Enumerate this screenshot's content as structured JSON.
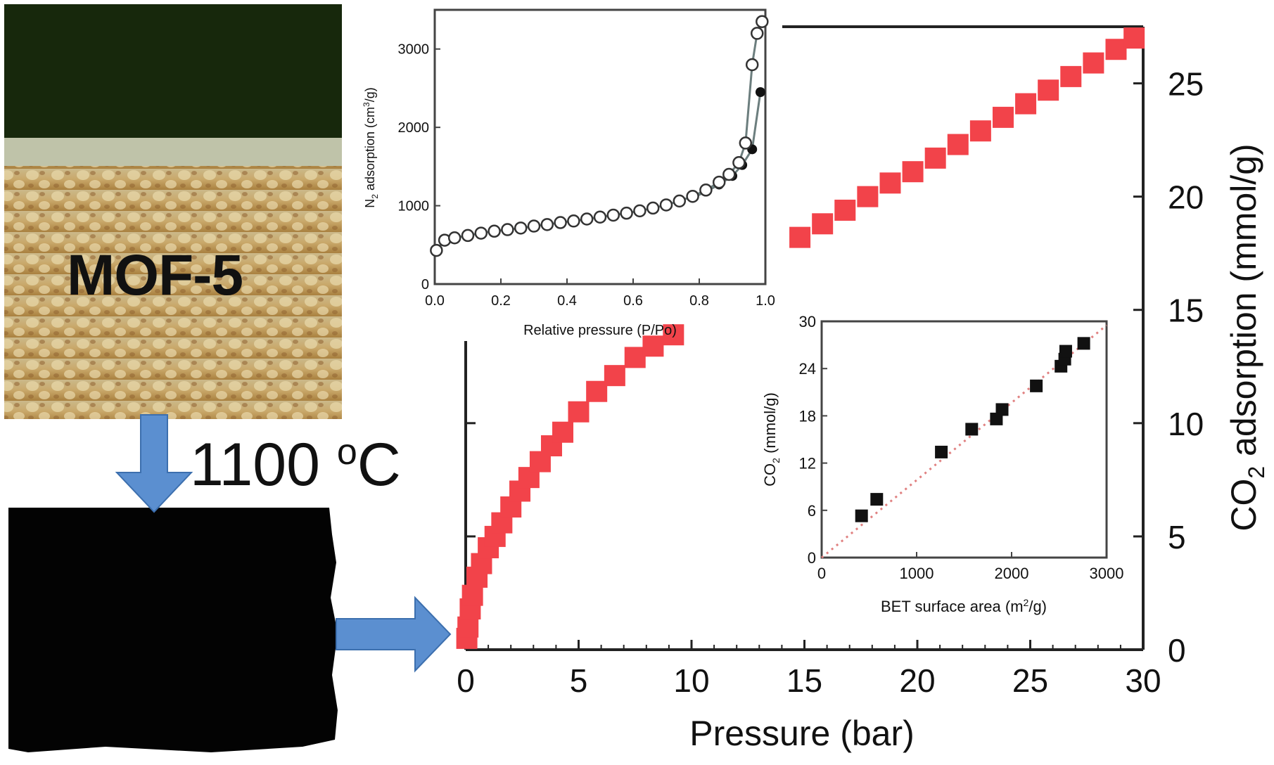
{
  "figure": {
    "photo_label": "MOF-5",
    "temperature_label": "1100",
    "temperature_unit_sup": "o",
    "temperature_unit": "C",
    "arrow_color": "#5b8fd0"
  },
  "chart_data": [
    {
      "id": "main-co2-isotherm",
      "type": "scatter",
      "title": "",
      "xlabel": "Pressure (bar)",
      "ylabel": "CO2 adsorption (mmol/g)",
      "xlim": [
        0,
        30
      ],
      "ylim": [
        0,
        27.5
      ],
      "xticks": [
        0,
        5,
        10,
        15,
        20,
        25,
        30
      ],
      "yticks": [
        0,
        5,
        10,
        15,
        20,
        25
      ],
      "marker": "square",
      "color": "#f2434a",
      "series": [
        {
          "x": [
            0.05,
            0.1,
            0.2,
            0.3,
            0.5,
            0.7,
            1.0,
            1.3,
            1.6,
            2.0,
            2.4,
            2.8,
            3.3,
            3.8,
            4.3,
            5.0,
            5.8,
            6.6,
            7.5,
            8.3,
            9.2,
            10.0,
            10.8,
            11.8,
            12.8,
            13.8,
            14.8,
            15.8,
            16.8,
            17.8,
            18.8,
            19.8,
            20.8,
            21.8,
            22.8,
            23.8,
            24.8,
            25.8,
            26.8,
            27.8,
            28.8,
            29.6
          ],
          "y": [
            0.5,
            1.0,
            1.8,
            2.4,
            3.2,
            3.8,
            4.5,
            5.0,
            5.6,
            6.3,
            7.0,
            7.6,
            8.3,
            9.0,
            9.6,
            10.5,
            11.4,
            12.1,
            12.9,
            13.4,
            13.9,
            14.6,
            15.3,
            16.1,
            16.8,
            17.6,
            18.2,
            18.8,
            19.4,
            20.0,
            20.6,
            21.1,
            21.7,
            22.3,
            22.9,
            23.5,
            24.1,
            24.7,
            25.3,
            25.9,
            26.5,
            27.0
          ]
        }
      ]
    },
    {
      "id": "n2-inset",
      "type": "line",
      "title": "",
      "xlabel": "Relative pressure (P/Po)",
      "ylabel": "N2 adsorption (cm3/g)",
      "xlim": [
        0,
        1.0
      ],
      "ylim": [
        0,
        3500
      ],
      "xticks": [
        "0.0",
        "0.2",
        "0.4",
        "0.6",
        "0.8",
        "1.0"
      ],
      "yticks": [
        "0",
        "1000",
        "2000",
        "3000"
      ],
      "series": [
        {
          "name": "",
          "marker": "open-circle",
          "x": [
            0.005,
            0.03,
            0.06,
            0.1,
            0.14,
            0.18,
            0.22,
            0.26,
            0.3,
            0.34,
            0.38,
            0.42,
            0.46,
            0.5,
            0.54,
            0.58,
            0.62,
            0.66,
            0.7,
            0.74,
            0.78,
            0.82,
            0.86,
            0.89,
            0.92,
            0.94,
            0.96,
            0.975,
            0.99
          ],
          "y": [
            430,
            560,
            590,
            620,
            650,
            675,
            695,
            715,
            740,
            760,
            785,
            805,
            830,
            855,
            880,
            905,
            935,
            970,
            1010,
            1060,
            1120,
            1200,
            1300,
            1400,
            1550,
            1800,
            2800,
            3200,
            3350
          ]
        },
        {
          "name": "",
          "marker": "filled-circle",
          "x": [
            0.78,
            0.82,
            0.86,
            0.9,
            0.93,
            0.96,
            0.985
          ],
          "y": [
            1100,
            1180,
            1270,
            1380,
            1520,
            1720,
            2450
          ]
        }
      ]
    },
    {
      "id": "bet-inset",
      "type": "scatter",
      "title": "",
      "xlabel": "BET surface area (m2/g)",
      "ylabel": "CO2 (mmol/g)",
      "xlim": [
        0,
        3000
      ],
      "ylim": [
        0,
        30
      ],
      "xticks": [
        "0",
        "1000",
        "2000",
        "3000"
      ],
      "yticks": [
        "0",
        "6",
        "12",
        "18",
        "24",
        "30"
      ],
      "trendline": {
        "x": [
          0,
          3000
        ],
        "y": [
          0,
          29.5
        ],
        "style": "dotted",
        "color": "#e08080"
      },
      "series": [
        {
          "marker": "filled-square",
          "x": [
            420,
            580,
            1260,
            1580,
            1840,
            1900,
            2260,
            2520,
            2560,
            2570,
            2760
          ],
          "y": [
            5.3,
            7.4,
            13.4,
            16.3,
            17.6,
            18.8,
            21.8,
            24.3,
            25.2,
            26.2,
            27.2
          ]
        }
      ]
    }
  ]
}
